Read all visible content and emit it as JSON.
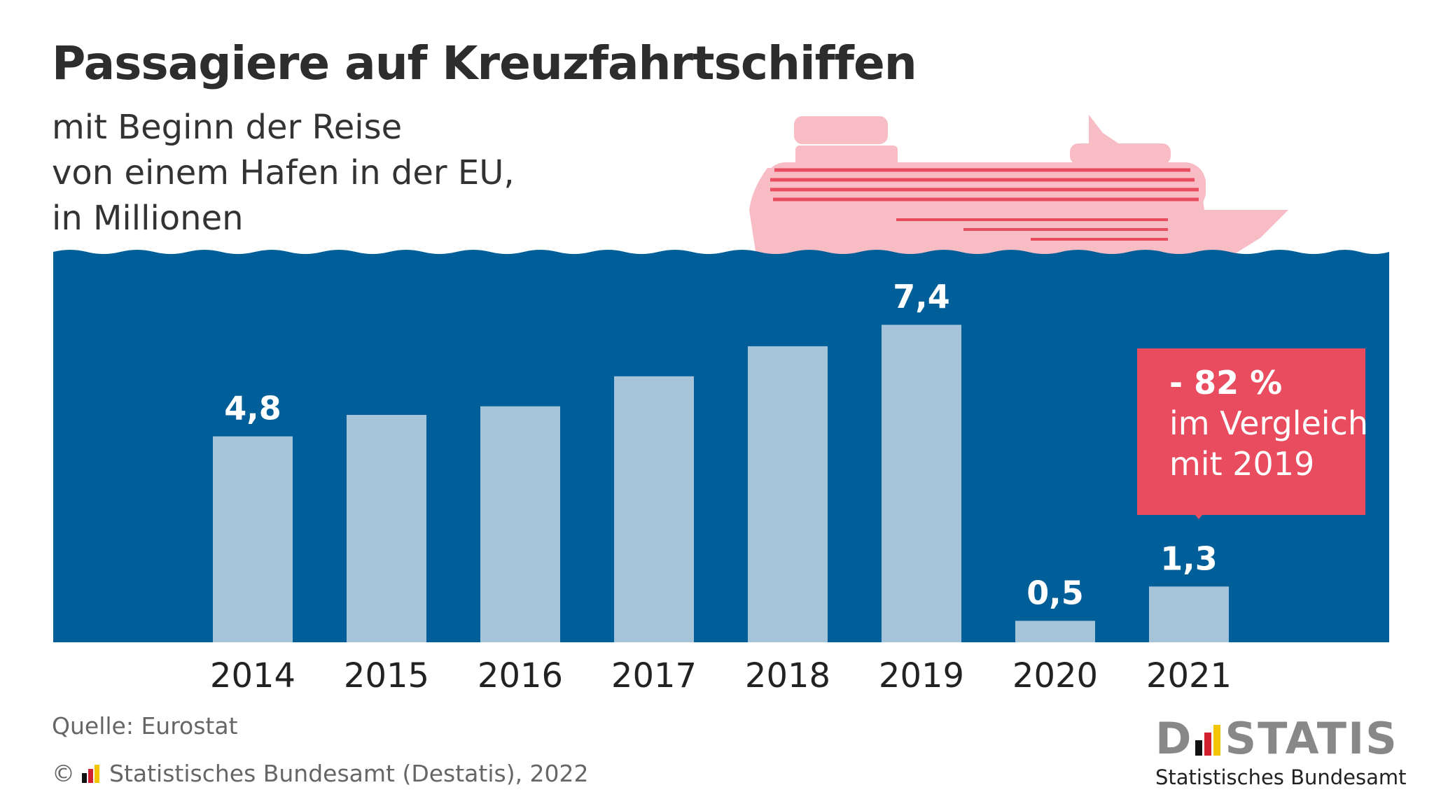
{
  "title": "Passagiere auf Kreuzfahrtschiffen",
  "subtitle": [
    "mit Beginn der Reise",
    "von einem Hafen in der EU,",
    "in Millionen"
  ],
  "chart_data": {
    "type": "bar",
    "categories": [
      "2014",
      "2015",
      "2016",
      "2017",
      "2018",
      "2019",
      "2020",
      "2021"
    ],
    "values": [
      4.8,
      5.3,
      5.5,
      6.2,
      6.9,
      7.4,
      0.5,
      1.3
    ],
    "data_labels": [
      "4,8",
      "",
      "",
      "",
      "",
      "7,4",
      "0,5",
      "1,3"
    ],
    "ylim": [
      0,
      9.1
    ],
    "grid": false,
    "colors": {
      "background": "#005f99",
      "bar": "#a5c4d9",
      "label": "#ffffff",
      "tick": "#222222"
    }
  },
  "callout": {
    "line1": "- 82 %",
    "line2": "im Vergleich",
    "line3": "mit 2019",
    "color": "#e94b5f"
  },
  "ship_color": "#f7bcc4",
  "ship_stripe_color": "#e94b5f",
  "source": "Quelle: Eurostat",
  "copyright": "© Statistisches Bundesamt (Destatis), 2022",
  "copyright_symbol": "©",
  "copyright_text": "Statistisches Bundesamt (Destatis), 2022",
  "logo": {
    "word_left": "D",
    "word_right": "STATIS",
    "sub": "Statistisches Bundesamt"
  }
}
